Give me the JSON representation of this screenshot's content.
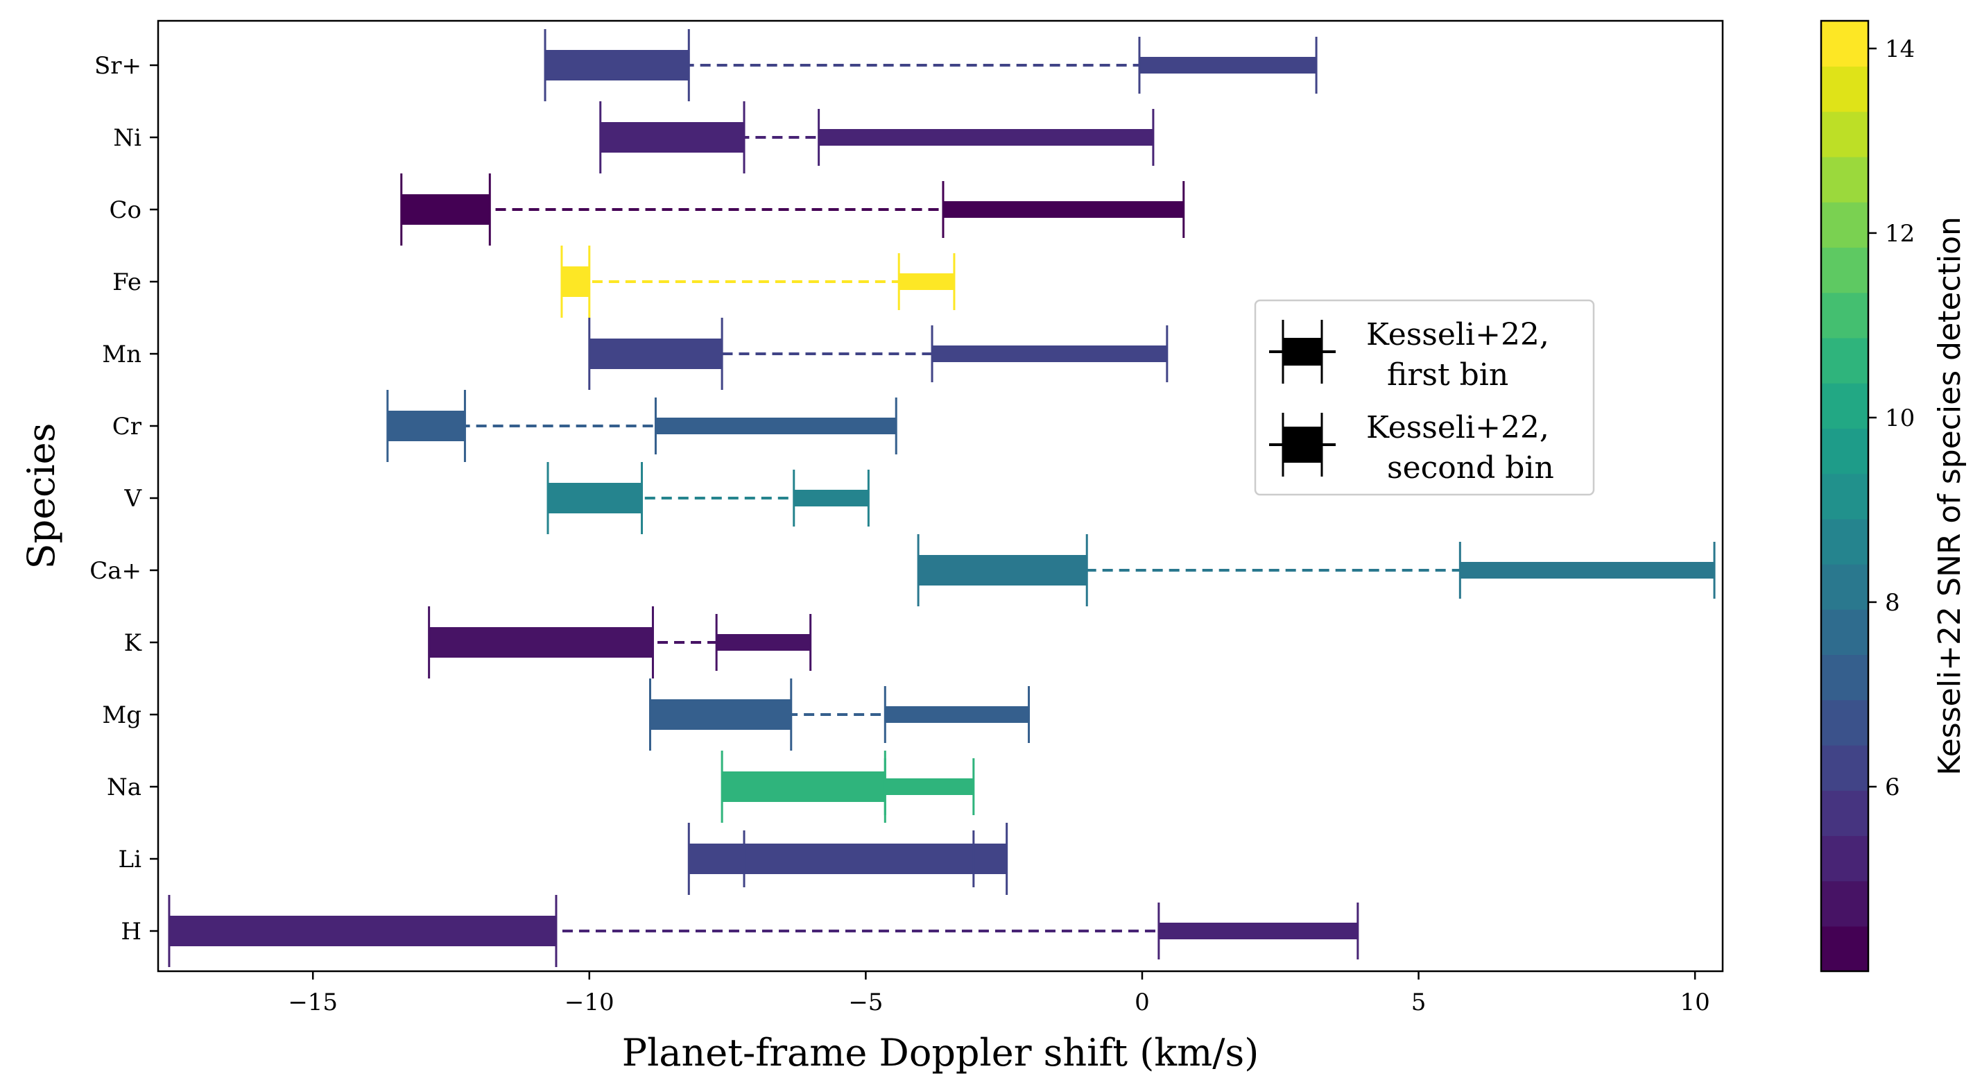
{
  "chart_data": {
    "type": "errorbar",
    "xlabel": "Planet-frame Doppler shift (km/s)",
    "ylabel": "Species",
    "xlim": [
      -17.8,
      10.5
    ],
    "xticks": [
      -15,
      -10,
      -5,
      0,
      5,
      10
    ],
    "xtick_labels": [
      "−15",
      "−10",
      "−5",
      "0",
      "5",
      "10"
    ],
    "legend": {
      "placement": "center-right",
      "entries": [
        {
          "label_line1": "Kesseli+22,",
          "label_line2": "first bin"
        },
        {
          "label_line1": "Kesseli+22,",
          "label_line2": "second bin"
        }
      ]
    },
    "colorbar": {
      "label": "Kesseli+22 SNR of species detection",
      "range": [
        4.0,
        14.3
      ],
      "ticks": [
        6,
        8,
        10,
        12,
        14
      ],
      "tick_labels": [
        "6",
        "8",
        "10",
        "12",
        "14"
      ],
      "colors": [
        "#440154",
        "#471365",
        "#482475",
        "#463480",
        "#414487",
        "#3b528b",
        "#355f8d",
        "#2f6c8e",
        "#2a788e",
        "#25848e",
        "#21918c",
        "#1e9c89",
        "#22a884",
        "#2fb47c",
        "#44bf70",
        "#5ec962",
        "#7ad151",
        "#9bd93c",
        "#bddf26",
        "#dfe318",
        "#fde725"
      ]
    },
    "species": [
      {
        "name": "Sr+",
        "snr": 6.0,
        "first_bin": [
          -10.8,
          -8.2
        ],
        "second_bin": [
          -0.05,
          3.15
        ]
      },
      {
        "name": "Ni",
        "snr": 5.4,
        "first_bin": [
          -9.8,
          -7.2
        ],
        "second_bin": [
          -5.85,
          0.2
        ]
      },
      {
        "name": "Co",
        "snr": 4.2,
        "first_bin": [
          -13.4,
          -11.8
        ],
        "second_bin": [
          -3.6,
          0.75
        ]
      },
      {
        "name": "Fe",
        "snr": 14.2,
        "first_bin": [
          -10.5,
          -10.0
        ],
        "second_bin": [
          -4.4,
          -3.4
        ]
      },
      {
        "name": "Mn",
        "snr": 6.0,
        "first_bin": [
          -10.0,
          -7.6
        ],
        "second_bin": [
          -3.8,
          0.45
        ]
      },
      {
        "name": "Cr",
        "snr": 7.0,
        "first_bin": [
          -13.65,
          -12.25
        ],
        "second_bin": [
          -8.8,
          -4.45
        ]
      },
      {
        "name": "V",
        "snr": 8.7,
        "first_bin": [
          -10.75,
          -9.05
        ],
        "second_bin": [
          -6.3,
          -4.95
        ]
      },
      {
        "name": "Ca+",
        "snr": 8.2,
        "first_bin": [
          -4.05,
          -1.0
        ],
        "second_bin": [
          5.75,
          10.35
        ]
      },
      {
        "name": "K",
        "snr": 4.6,
        "first_bin": [
          -12.9,
          -8.85
        ],
        "second_bin": [
          -7.7,
          -6.0
        ]
      },
      {
        "name": "Mg",
        "snr": 7.0,
        "first_bin": [
          -8.9,
          -6.35
        ],
        "second_bin": [
          -4.65,
          -2.05
        ]
      },
      {
        "name": "Na",
        "snr": 10.6,
        "first_bin": [
          -7.6,
          -4.65
        ],
        "second_bin": [
          -4.65,
          -3.05
        ]
      },
      {
        "name": "Li",
        "snr": 6.0,
        "first_bin": [
          -8.2,
          -2.45
        ],
        "second_bin": [
          -7.2,
          -3.05
        ]
      },
      {
        "name": "H",
        "snr": 5.0,
        "first_bin": [
          -17.6,
          -10.6
        ],
        "second_bin": [
          0.3,
          3.9
        ]
      }
    ]
  }
}
